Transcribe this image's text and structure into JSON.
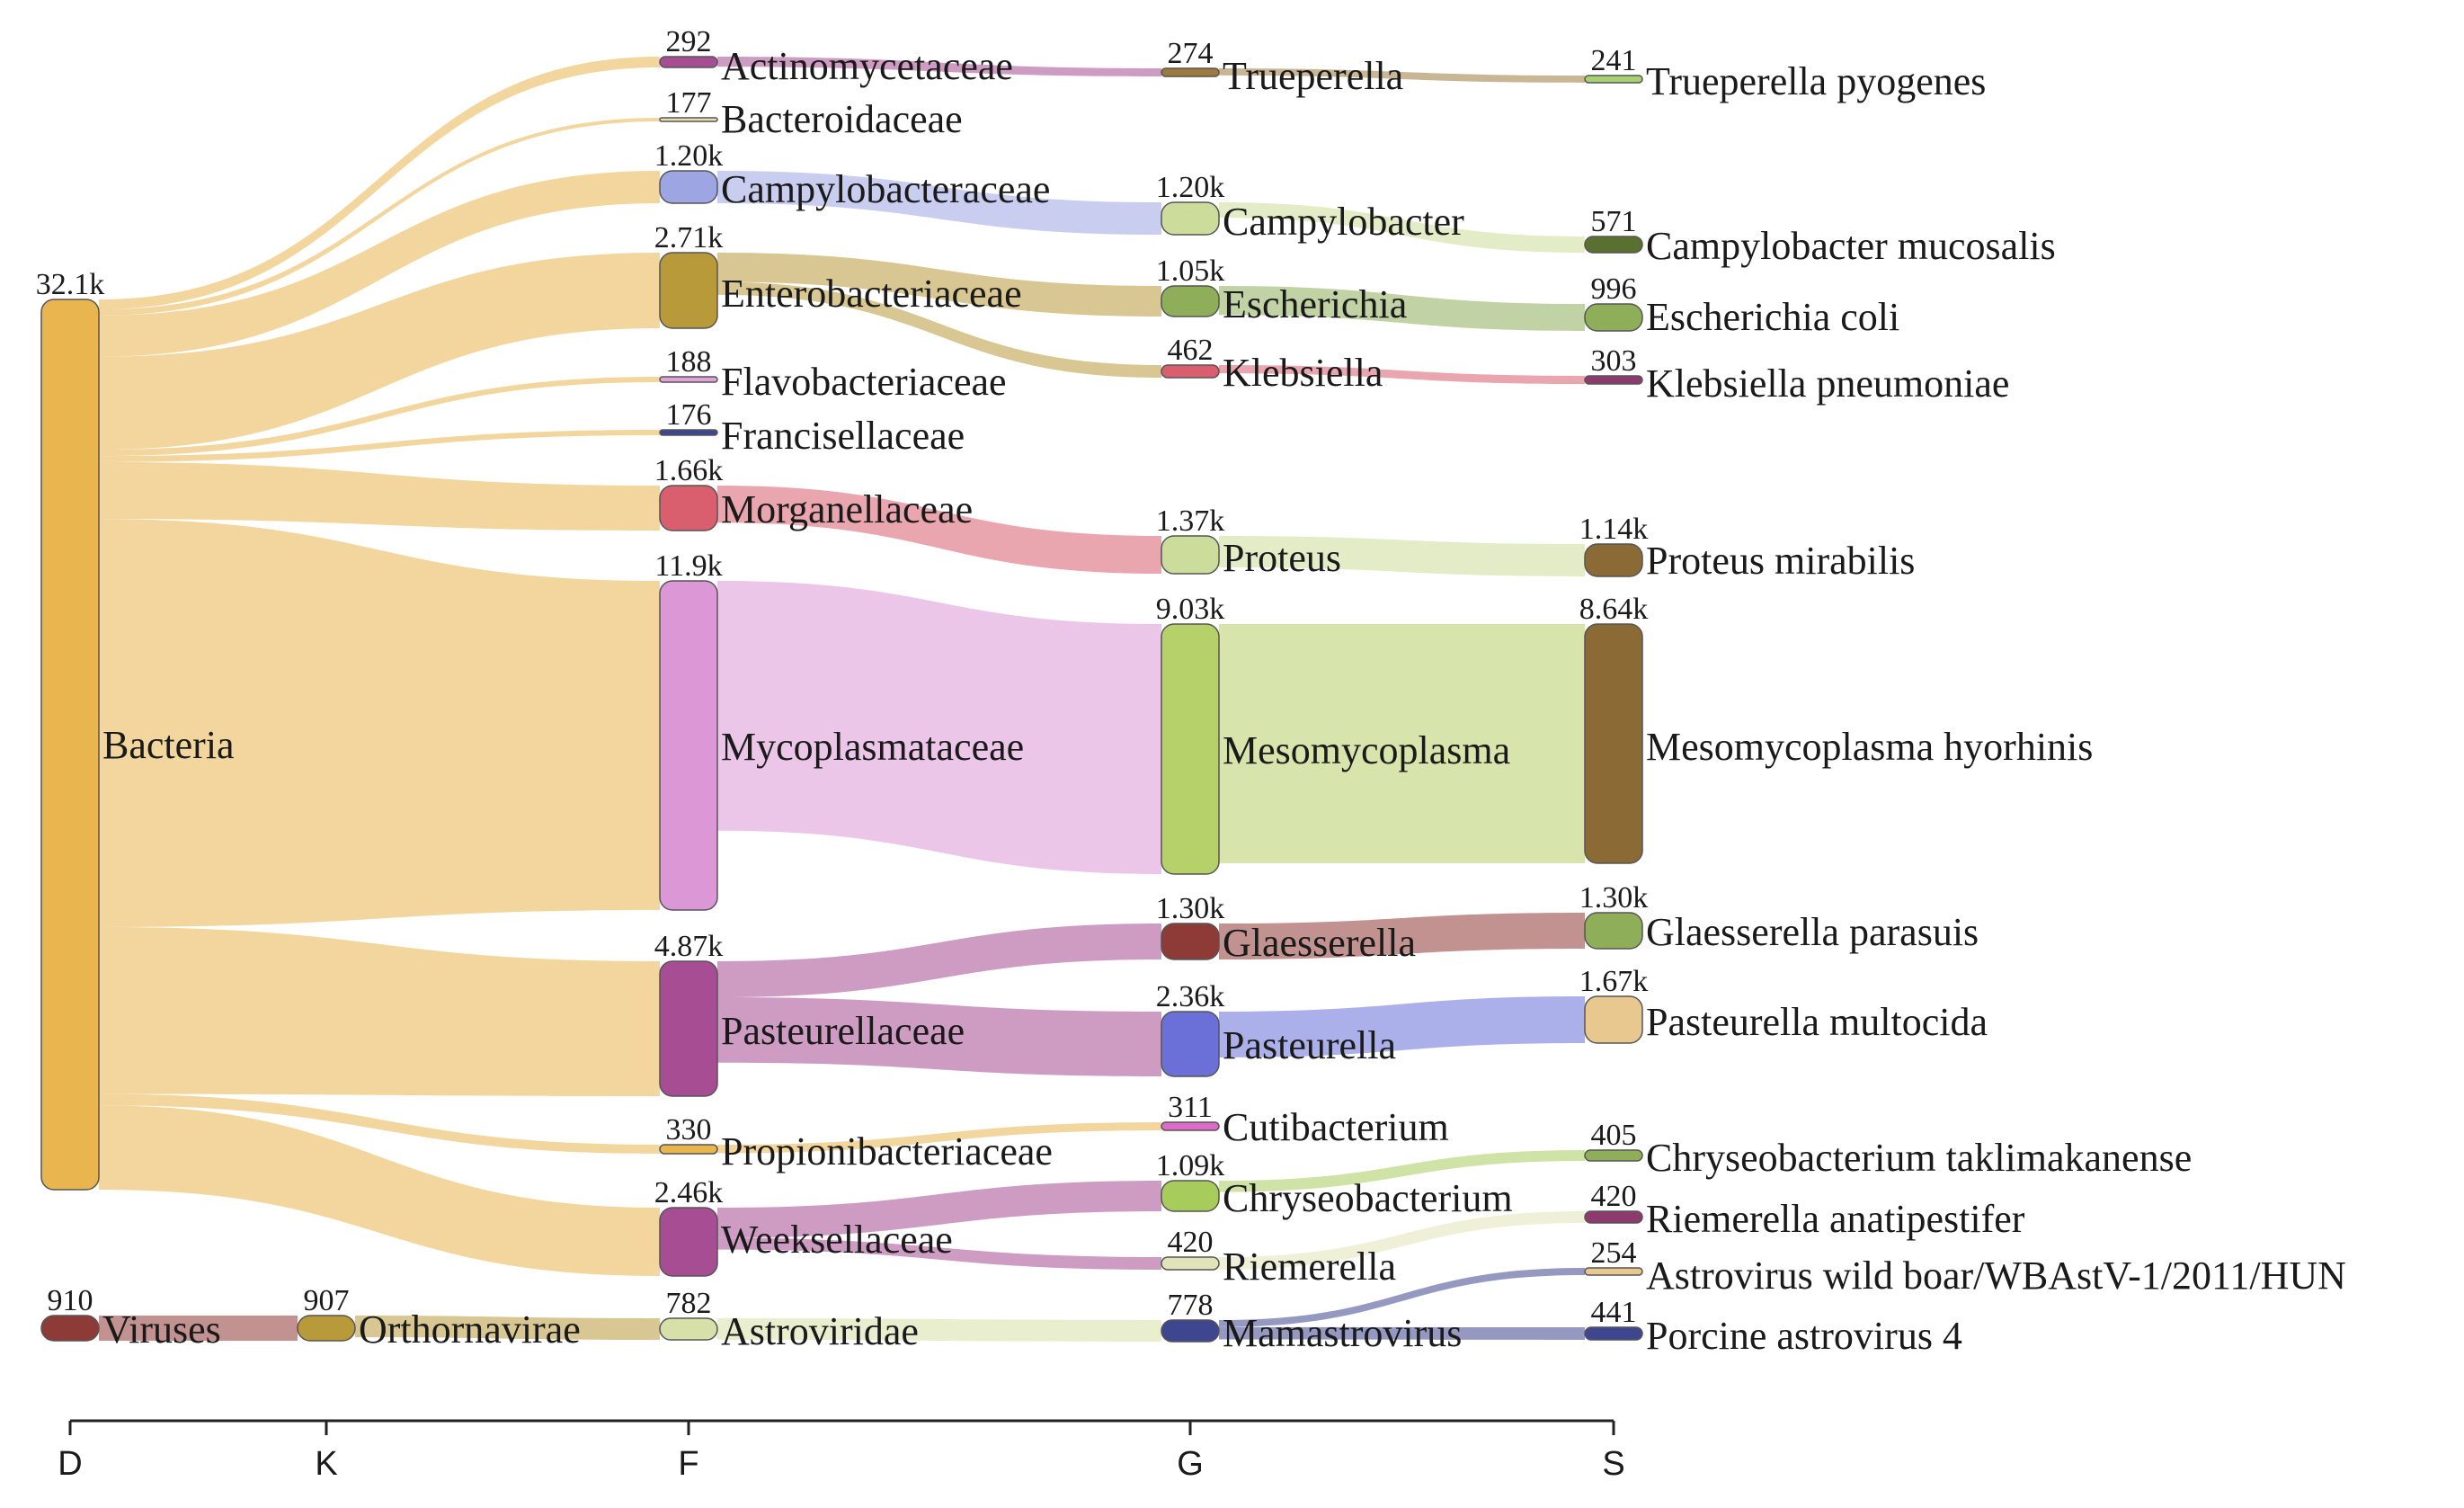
{
  "chart_data": {
    "type": "sankey",
    "title": "",
    "levels": [
      {
        "id": "D",
        "label": "D"
      },
      {
        "id": "K",
        "label": "K"
      },
      {
        "id": "F",
        "label": "F"
      },
      {
        "id": "G",
        "label": "G"
      },
      {
        "id": "S",
        "label": "S"
      }
    ],
    "nodes": [
      {
        "id": "bacteria",
        "name": "Bacteria",
        "level": "D",
        "value_label": "32.1k",
        "color": "#e8b54f"
      },
      {
        "id": "viruses",
        "name": "Viruses",
        "level": "D",
        "value_label": "910",
        "color": "#8e3a36"
      },
      {
        "id": "orthornavirae",
        "name": "Orthornavirae",
        "level": "K",
        "value_label": "907",
        "color": "#b89a3a"
      },
      {
        "id": "actinomycetaceae",
        "name": "Actinomycetaceae",
        "level": "F",
        "value_label": "292",
        "color": "#a64d94"
      },
      {
        "id": "bacteroidaceae",
        "name": "Bacteroidaceae",
        "level": "F",
        "value_label": "177",
        "color": "#e8e0b0"
      },
      {
        "id": "campylobacteraceae",
        "name": "Campylobacteraceae",
        "level": "F",
        "value_label": "1.20k",
        "color": "#9ea5e3"
      },
      {
        "id": "enterobacteriaceae",
        "name": "Enterobacteriaceae",
        "level": "F",
        "value_label": "2.71k",
        "color": "#b89a3a"
      },
      {
        "id": "flavobacteriaceae",
        "name": "Flavobacteriaceae",
        "level": "F",
        "value_label": "188",
        "color": "#e0a0d8"
      },
      {
        "id": "francisellaceae",
        "name": "Francisellaceae",
        "level": "F",
        "value_label": "176",
        "color": "#3f4690"
      },
      {
        "id": "morganellaceae",
        "name": "Morganellaceae",
        "level": "F",
        "value_label": "1.66k",
        "color": "#d95f6e"
      },
      {
        "id": "mycoplasmataceae",
        "name": "Mycoplasmataceae",
        "level": "F",
        "value_label": "11.9k",
        "color": "#dc98d6"
      },
      {
        "id": "pasteurellaceae",
        "name": "Pasteurellaceae",
        "level": "F",
        "value_label": "4.87k",
        "color": "#a64d94"
      },
      {
        "id": "propionibacteriaceae",
        "name": "Propionibacteriaceae",
        "level": "F",
        "value_label": "330",
        "color": "#e8b54f"
      },
      {
        "id": "weeksellaceae",
        "name": "Weeksellaceae",
        "level": "F",
        "value_label": "2.46k",
        "color": "#a64d94"
      },
      {
        "id": "astroviridae",
        "name": "Astroviridae",
        "level": "F",
        "value_label": "782",
        "color": "#d6e0a8"
      },
      {
        "id": "trueperella",
        "name": "Trueperella",
        "level": "G",
        "value_label": "274",
        "color": "#9e7a3e"
      },
      {
        "id": "campylobacter",
        "name": "Campylobacter",
        "level": "G",
        "value_label": "1.20k",
        "color": "#ccdc9a"
      },
      {
        "id": "escherichia",
        "name": "Escherichia",
        "level": "G",
        "value_label": "1.05k",
        "color": "#8fae5a"
      },
      {
        "id": "klebsiella",
        "name": "Klebsiella",
        "level": "G",
        "value_label": "462",
        "color": "#d95f6e"
      },
      {
        "id": "proteus",
        "name": "Proteus",
        "level": "G",
        "value_label": "1.37k",
        "color": "#ccdc9a"
      },
      {
        "id": "mesomycoplasma",
        "name": "Mesomycoplasma",
        "level": "G",
        "value_label": "9.03k",
        "color": "#b6d06a"
      },
      {
        "id": "glaesserella",
        "name": "Glaesserella",
        "level": "G",
        "value_label": "1.30k",
        "color": "#8e3a36"
      },
      {
        "id": "pasteurella",
        "name": "Pasteurella",
        "level": "G",
        "value_label": "2.36k",
        "color": "#6a70d8"
      },
      {
        "id": "cutibacterium",
        "name": "Cutibacterium",
        "level": "G",
        "value_label": "311",
        "color": "#dc6ac8"
      },
      {
        "id": "chryseobacterium",
        "name": "Chryseobacterium",
        "level": "G",
        "value_label": "1.09k",
        "color": "#a8cc5c"
      },
      {
        "id": "riemerella",
        "name": "Riemerella",
        "level": "G",
        "value_label": "420",
        "color": "#e0e4b8"
      },
      {
        "id": "mamastrovirus",
        "name": "Mamastrovirus",
        "level": "G",
        "value_label": "778",
        "color": "#3f4690"
      },
      {
        "id": "trueperella_pyogenes",
        "name": "Trueperella pyogenes",
        "level": "S",
        "value_label": "241",
        "color": "#a8d070"
      },
      {
        "id": "campylobacter_mucosalis",
        "name": "Campylobacter mucosalis",
        "level": "S",
        "value_label": "571",
        "color": "#5a7030"
      },
      {
        "id": "escherichia_coli",
        "name": "Escherichia coli",
        "level": "S",
        "value_label": "996",
        "color": "#8fae5a"
      },
      {
        "id": "klebsiella_pneumoniae",
        "name": "Klebsiella pneumoniae",
        "level": "S",
        "value_label": "303",
        "color": "#8e3a6e"
      },
      {
        "id": "proteus_mirabilis",
        "name": "Proteus mirabilis",
        "level": "S",
        "value_label": "1.14k",
        "color": "#8c6a35"
      },
      {
        "id": "mesomycoplasma_hyorhinis",
        "name": "Mesomycoplasma hyorhinis",
        "level": "S",
        "value_label": "8.64k",
        "color": "#8c6a35"
      },
      {
        "id": "glaesserella_parasuis",
        "name": "Glaesserella parasuis",
        "level": "S",
        "value_label": "1.30k",
        "color": "#8fae5a"
      },
      {
        "id": "pasteurella_multocida",
        "name": "Pasteurella multocida",
        "level": "S",
        "value_label": "1.67k",
        "color": "#e8c88e"
      },
      {
        "id": "chryseobacterium_taklimakanense",
        "name": "Chryseobacterium taklimakanense",
        "level": "S",
        "value_label": "405",
        "color": "#8fae5a"
      },
      {
        "id": "riemerella_anatipestifer",
        "name": "Riemerella anatipestifer",
        "level": "S",
        "value_label": "420",
        "color": "#8e3a6e"
      },
      {
        "id": "astrovirus_wild_boar",
        "name": "Astrovirus wild boar/WBAstV-1/2011/HUN",
        "level": "S",
        "value_label": "254",
        "color": "#e8c88e"
      },
      {
        "id": "porcine_astrovirus_4",
        "name": "Porcine astrovirus 4",
        "level": "S",
        "value_label": "441",
        "color": "#3f4690"
      }
    ],
    "links": [
      {
        "source": "bacteria",
        "target": "actinomycetaceae",
        "value": 292
      },
      {
        "source": "bacteria",
        "target": "bacteroidaceae",
        "value": 177
      },
      {
        "source": "bacteria",
        "target": "campylobacteraceae",
        "value": 1200
      },
      {
        "source": "bacteria",
        "target": "enterobacteriaceae",
        "value": 2710
      },
      {
        "source": "bacteria",
        "target": "flavobacteriaceae",
        "value": 188
      },
      {
        "source": "bacteria",
        "target": "francisellaceae",
        "value": 176
      },
      {
        "source": "bacteria",
        "target": "morganellaceae",
        "value": 1660
      },
      {
        "source": "bacteria",
        "target": "mycoplasmataceae",
        "value": 11900
      },
      {
        "source": "bacteria",
        "target": "pasteurellaceae",
        "value": 4870
      },
      {
        "source": "bacteria",
        "target": "propionibacteriaceae",
        "value": 330
      },
      {
        "source": "bacteria",
        "target": "weeksellaceae",
        "value": 2460
      },
      {
        "source": "viruses",
        "target": "orthornavirae",
        "value": 907
      },
      {
        "source": "orthornavirae",
        "target": "astroviridae",
        "value": 782
      },
      {
        "source": "actinomycetaceae",
        "target": "trueperella",
        "value": 274
      },
      {
        "source": "campylobacteraceae",
        "target": "campylobacter",
        "value": 1200
      },
      {
        "source": "enterobacteriaceae",
        "target": "escherichia",
        "value": 1050
      },
      {
        "source": "enterobacteriaceae",
        "target": "klebsiella",
        "value": 462
      },
      {
        "source": "morganellaceae",
        "target": "proteus",
        "value": 1370
      },
      {
        "source": "mycoplasmataceae",
        "target": "mesomycoplasma",
        "value": 9030
      },
      {
        "source": "pasteurellaceae",
        "target": "glaesserella",
        "value": 1300
      },
      {
        "source": "pasteurellaceae",
        "target": "pasteurella",
        "value": 2360
      },
      {
        "source": "propionibacteriaceae",
        "target": "cutibacterium",
        "value": 311
      },
      {
        "source": "weeksellaceae",
        "target": "chryseobacterium",
        "value": 1090
      },
      {
        "source": "weeksellaceae",
        "target": "riemerella",
        "value": 420
      },
      {
        "source": "astroviridae",
        "target": "mamastrovirus",
        "value": 778
      },
      {
        "source": "trueperella",
        "target": "trueperella_pyogenes",
        "value": 241
      },
      {
        "source": "campylobacter",
        "target": "campylobacter_mucosalis",
        "value": 571
      },
      {
        "source": "escherichia",
        "target": "escherichia_coli",
        "value": 996
      },
      {
        "source": "klebsiella",
        "target": "klebsiella_pneumoniae",
        "value": 303
      },
      {
        "source": "proteus",
        "target": "proteus_mirabilis",
        "value": 1140
      },
      {
        "source": "mesomycoplasma",
        "target": "mesomycoplasma_hyorhinis",
        "value": 8640
      },
      {
        "source": "glaesserella",
        "target": "glaesserella_parasuis",
        "value": 1300
      },
      {
        "source": "pasteurella",
        "target": "pasteurella_multocida",
        "value": 1670
      },
      {
        "source": "chryseobacterium",
        "target": "chryseobacterium_taklimakanense",
        "value": 405
      },
      {
        "source": "riemerella",
        "target": "riemerella_anatipestifer",
        "value": 420
      },
      {
        "source": "mamastrovirus",
        "target": "astrovirus_wild_boar",
        "value": 254
      },
      {
        "source": "mamastrovirus",
        "target": "porcine_astrovirus_4",
        "value": 441
      }
    ]
  }
}
